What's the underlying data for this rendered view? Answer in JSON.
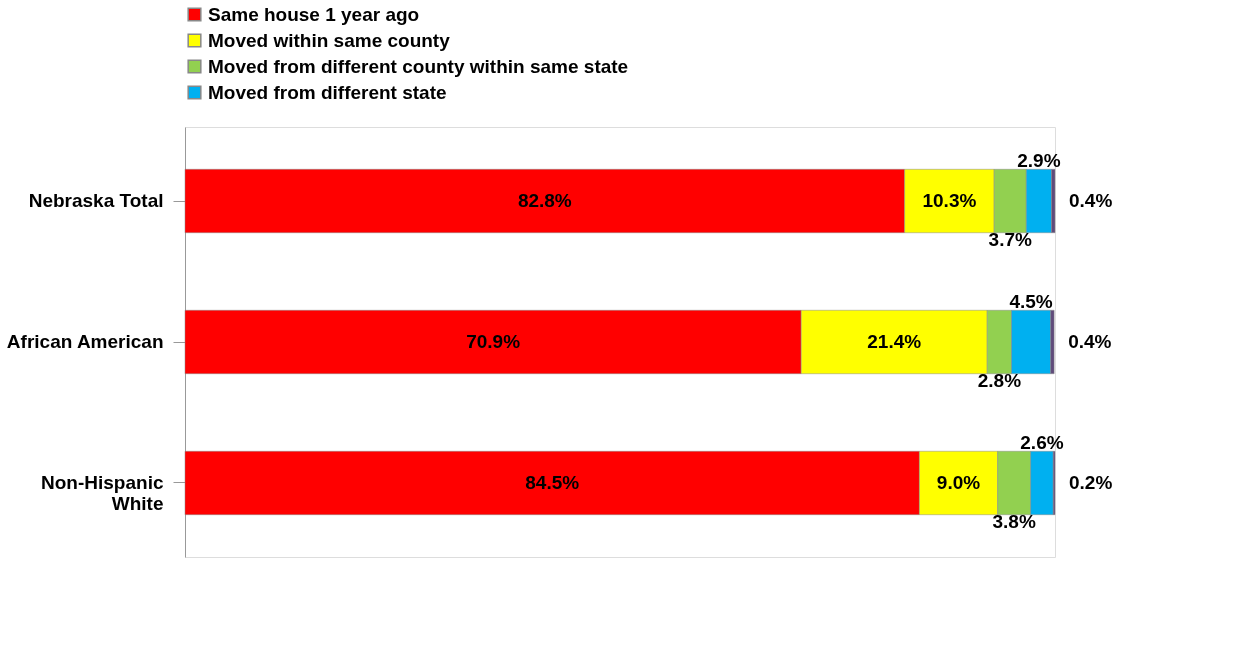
{
  "chart_data": {
    "type": "bar",
    "orientation": "horizontal",
    "stacked": true,
    "legend": "top",
    "tick_labels": "y",
    "grid": false,
    "categories": [
      "Nebraska Total",
      "African American",
      "Non-Hispanic White"
    ],
    "series": [
      {
        "name": "Same house 1 year ago",
        "color": "#ff0000",
        "values": [
          82.8,
          70.9,
          84.5
        ],
        "value_labels": [
          "82.8%",
          "70.9%",
          "84.5%"
        ]
      },
      {
        "name": "Moved within same county",
        "color": "#ffff00",
        "values": [
          10.3,
          21.4,
          9.0
        ],
        "value_labels": [
          "10.3%",
          "21.4%",
          "9.0%"
        ]
      },
      {
        "name": "Moved from different county within same state",
        "color": "#92d050",
        "values": [
          3.7,
          2.8,
          3.8
        ],
        "value_labels": [
          "3.7%",
          "2.8%",
          "3.8%"
        ]
      },
      {
        "name": "Moved from different state",
        "color": "#00b0f0",
        "values": [
          2.9,
          4.5,
          2.6
        ],
        "value_labels": [
          "2.9%",
          "4.5%",
          "2.6%"
        ]
      },
      {
        "color": "#604a7b",
        "values": [
          0.4,
          0.4,
          0.2
        ],
        "value_labels": [
          "0.4%",
          "0.4%",
          "0.2%"
        ]
      }
    ]
  }
}
